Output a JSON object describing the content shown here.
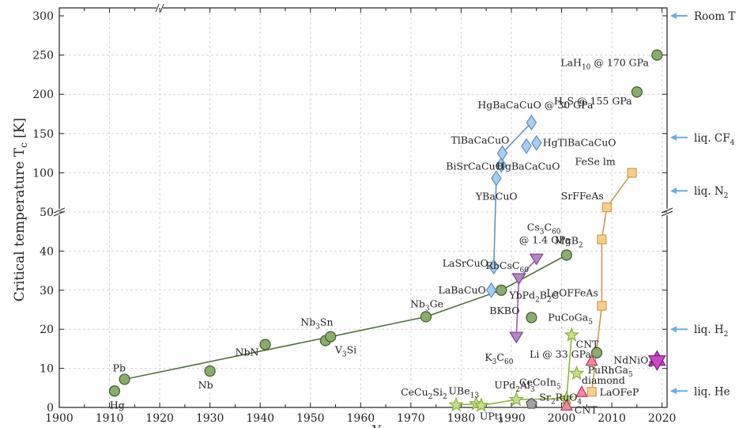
{
  "chart_data": {
    "type": "scatter",
    "xlabel": "Year",
    "ylabel": "Critical temperature T_c [K]",
    "xlim": [
      1900,
      2021
    ],
    "ylim": [
      0,
      305
    ],
    "y_axis_break": {
      "lower_range": [
        0,
        50
      ],
      "upper_range": [
        50,
        300
      ]
    },
    "x_ticks": [
      1900,
      1905,
      1910,
      1915,
      1920,
      1925,
      1930,
      1935,
      1940,
      1945,
      1950,
      1955,
      1960,
      1965,
      1970,
      1975,
      1980,
      1985,
      1990,
      1995,
      2000,
      2005,
      2010,
      2015,
      2020
    ],
    "x_tick_labels": [
      "1900",
      "1910",
      "1920",
      "1930",
      "1940",
      "1950",
      "1960",
      "1970",
      "1980",
      "1990",
      "2000",
      "2010",
      "2020"
    ],
    "y_ticks": [
      0,
      10,
      20,
      30,
      40,
      50,
      100,
      150,
      200,
      250,
      300
    ],
    "y_tick_labels": [
      "0",
      "10",
      "20",
      "30",
      "40",
      "50",
      "100",
      "150",
      "200",
      "250",
      "300"
    ],
    "grid": true,
    "series": [
      {
        "family": "conventional",
        "marker": "circle",
        "color": "#8bac6d",
        "points": [
          {
            "label": "Hg",
            "x": 1911,
            "y": 4.2
          },
          {
            "label": "Pb",
            "x": 1913,
            "y": 7.2
          },
          {
            "label": "Nb",
            "x": 1930,
            "y": 9.3
          },
          {
            "label": "NbN",
            "x": 1941,
            "y": 16.1
          },
          {
            "label": "V3Si",
            "x": 1953,
            "y": 17.1
          },
          {
            "label": "Nb3Sn",
            "x": 1954,
            "y": 18.1
          },
          {
            "label": "Nb3Ge",
            "x": 1973,
            "y": 23.2
          },
          {
            "label": "BKBO",
            "x": 1988,
            "y": 30
          },
          {
            "label": "YbPd2B2C",
            "x": 1994,
            "y": 23
          },
          {
            "label": "MgB2",
            "x": 2001,
            "y": 39
          },
          {
            "label": "Li @ 33 GPa",
            "x": 2007,
            "y": 14
          },
          {
            "label": "H2S @ 155 GPa",
            "x": 2015,
            "y": 203
          },
          {
            "label": "LaH10 @ 170 GPa",
            "x": 2019,
            "y": 250
          }
        ]
      },
      {
        "family": "cuprates",
        "marker": "diamond",
        "color": "#a9cdee",
        "points": [
          {
            "label": "LaBaCuO",
            "x": 1986,
            "y": 30
          },
          {
            "label": "LaSrCuO",
            "x": 1986.5,
            "y": 36
          },
          {
            "label": "YBaCuO",
            "x": 1987,
            "y": 93
          },
          {
            "label": "BiSrCaCuO",
            "x": 1988,
            "y": 110
          },
          {
            "label": "TlBaCaCuO",
            "x": 1988.2,
            "y": 125
          },
          {
            "label": "HgBaCaCuO",
            "x": 1993,
            "y": 134
          },
          {
            "label": "HgTlBaCaCuO",
            "x": 1995,
            "y": 138
          },
          {
            "label": "HgBaCaCuO @ 30 GPa",
            "x": 1994,
            "y": 164
          }
        ]
      },
      {
        "family": "fullerides",
        "marker": "triangle-down",
        "color": "#b389c4",
        "points": [
          {
            "label": "K3C60",
            "x": 1991,
            "y": 18
          },
          {
            "label": "RbCsC60",
            "x": 1991.5,
            "y": 33
          },
          {
            "label": "Cs3C60 @ 1.4 GPa",
            "x": 1995,
            "y": 38
          }
        ]
      },
      {
        "family": "heavy-fermion",
        "marker": "star",
        "color": "#c6e08e",
        "points": [
          {
            "label": "CeCu2Si2",
            "x": 1979,
            "y": 0.6
          },
          {
            "label": "UBe13",
            "x": 1983,
            "y": 0.9
          },
          {
            "label": "UPt3",
            "x": 1984,
            "y": 0.5
          },
          {
            "label": "UPd2Al3",
            "x": 1991,
            "y": 2
          },
          {
            "label": "CeCoIn5",
            "x": 2001,
            "y": 2.3
          },
          {
            "label": "PuRhGa5",
            "x": 2003,
            "y": 8.7
          },
          {
            "label": "PuCoGa5",
            "x": 2002,
            "y": 18.5
          }
        ]
      },
      {
        "family": "ruthenate",
        "marker": "pentagon",
        "color": "#a3a3a3",
        "points": [
          {
            "label": "Sr2RuO4",
            "x": 1994,
            "y": 0.93
          }
        ]
      },
      {
        "family": "carbon",
        "marker": "triangle-up",
        "color": "#ef8aa0",
        "points": [
          {
            "label": "CNT",
            "x": 2001,
            "y": 0.55
          },
          {
            "label": "diamond",
            "x": 2004,
            "y": 4
          },
          {
            "label": "CNT",
            "x": 2006,
            "y": 12
          }
        ]
      },
      {
        "family": "iron-based",
        "marker": "square",
        "color": "#f7ce8e",
        "points": [
          {
            "label": "LaOFeP",
            "x": 2006,
            "y": 4
          },
          {
            "label": "LaOFFeAs",
            "x": 2008,
            "y": 26
          },
          {
            "label": "",
            "x": 2008,
            "y": 43
          },
          {
            "label": "SrFFeAs",
            "x": 2009,
            "y": 56
          },
          {
            "label": "FeSe lm",
            "x": 2014,
            "y": 100
          }
        ]
      },
      {
        "family": "nickelate",
        "marker": "hexagram",
        "color": "#c74ac9",
        "points": [
          {
            "label": "NdNiO2",
            "x": 2019,
            "y": 12
          }
        ]
      }
    ],
    "reference_lines": [
      {
        "label": "Room T",
        "y": 300
      },
      {
        "label": "liq. CF4",
        "y": 145
      },
      {
        "label": "liq. N2",
        "y": 77
      },
      {
        "label": "liq. H2",
        "y": 20
      },
      {
        "label": "liq. He",
        "y": 4.2
      }
    ]
  }
}
